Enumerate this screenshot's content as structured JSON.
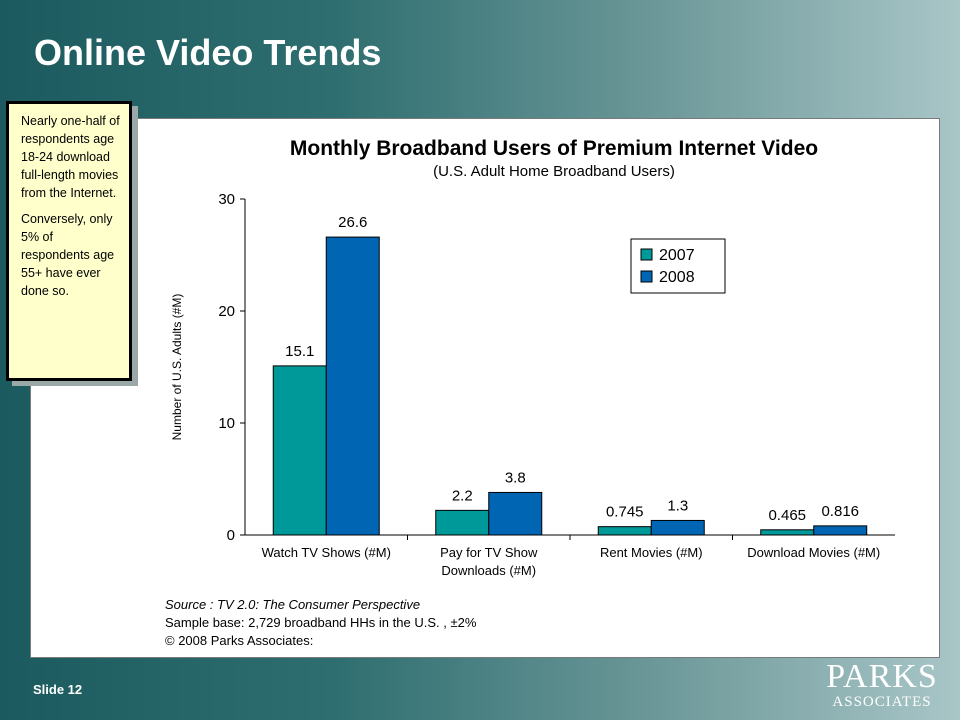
{
  "slide": {
    "title": "Online Video Trends",
    "number_label": "Slide 12"
  },
  "callout": {
    "paragraph1": "Nearly one-half of respondents age 18-24 download full-length movies from the Internet.",
    "paragraph2": "Conversely, only 5% of respondents age 55+ have ever done so."
  },
  "source": {
    "line1": "Source :  TV 2.0: The Consumer Perspective",
    "line2": "Sample base: 2,729 broadband HHs in the U.S. , ±2%",
    "line3": "© 2008 Parks Associates:"
  },
  "logo": {
    "line1": "PARKS",
    "line2": "ASSOCIATES"
  },
  "chart_data": {
    "type": "bar",
    "title": "Monthly Broadband Users of Premium Internet Video",
    "subtitle": "(U.S. Adult Home Broadband Users)",
    "ylabel": "Number of U.S. Adults (#M)",
    "ylim": [
      0,
      30
    ],
    "yticks": [
      0,
      10,
      20,
      30
    ],
    "categories": [
      [
        "Watch TV Shows (#M)"
      ],
      [
        "Pay for TV Show",
        "Downloads (#M)"
      ],
      [
        "Rent Movies (#M)"
      ],
      [
        "Download Movies (#M)"
      ]
    ],
    "series": [
      {
        "name": "2007",
        "color": "#009999",
        "values": [
          15.1,
          2.2,
          0.745,
          0.465
        ],
        "labels": [
          "15.1",
          "2.2",
          "0.745",
          "0.465"
        ]
      },
      {
        "name": "2008",
        "color": "#0066b3",
        "values": [
          26.6,
          3.8,
          1.3,
          0.816
        ],
        "labels": [
          "26.6",
          "3.8",
          "1.3",
          "0.816"
        ]
      }
    ],
    "legend_position": "top-right",
    "grid": false
  }
}
